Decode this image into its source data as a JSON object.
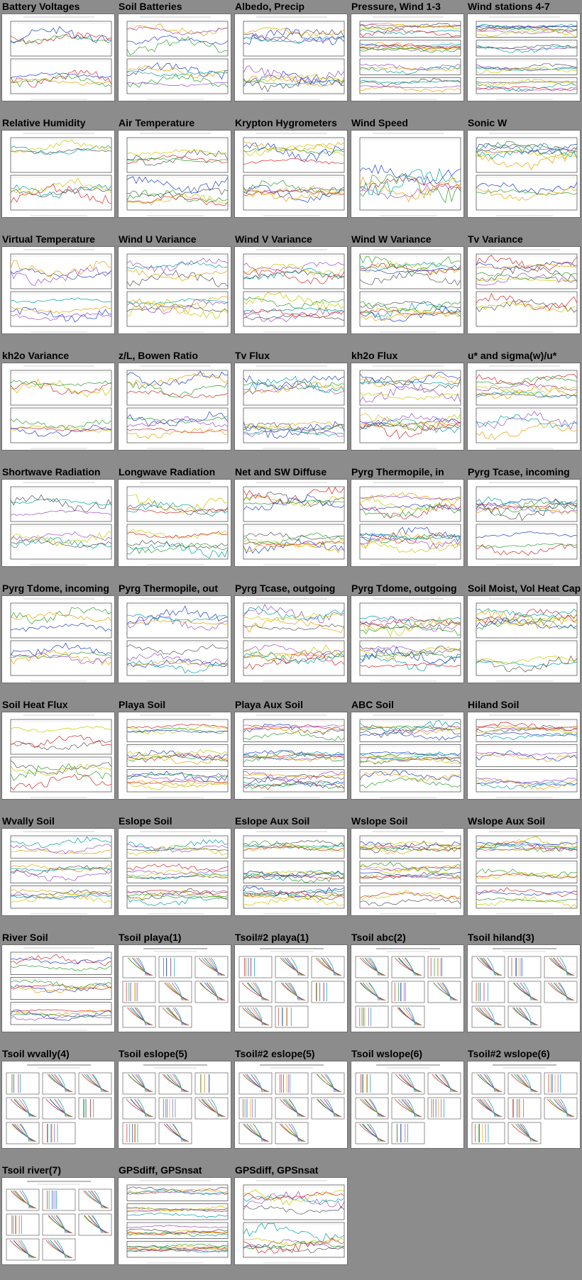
{
  "thumbnails": [
    {
      "title": "Battery Voltages",
      "kind": "ts",
      "panels": 2
    },
    {
      "title": "Soil Batteries",
      "kind": "ts",
      "panels": 2
    },
    {
      "title": "Albedo, Precip",
      "kind": "ts",
      "panels": 2
    },
    {
      "title": "Pressure, Wind 1-3",
      "kind": "ts",
      "panels": 4
    },
    {
      "title": "Wind stations 4-7",
      "kind": "ts",
      "panels": 4
    },
    {
      "title": "Relative Humidity",
      "kind": "ts",
      "panels": 2
    },
    {
      "title": "Air Temperature",
      "kind": "ts",
      "panels": 2
    },
    {
      "title": "Krypton Hygrometers",
      "kind": "ts",
      "panels": 2
    },
    {
      "title": "Wind Speed",
      "kind": "ts",
      "panels": 1
    },
    {
      "title": "Sonic W",
      "kind": "ts",
      "panels": 2
    },
    {
      "title": "Virtual Temperature",
      "kind": "ts",
      "panels": 2
    },
    {
      "title": "Wind U Variance",
      "kind": "ts",
      "panels": 2
    },
    {
      "title": "Wind V Variance",
      "kind": "ts",
      "panels": 2
    },
    {
      "title": "Wind W Variance",
      "kind": "ts",
      "panels": 2
    },
    {
      "title": "Tv Variance",
      "kind": "ts",
      "panels": 2
    },
    {
      "title": "kh2o Variance",
      "kind": "ts",
      "panels": 2
    },
    {
      "title": "z/L, Bowen Ratio",
      "kind": "ts",
      "panels": 2
    },
    {
      "title": "Tv Flux",
      "kind": "ts",
      "panels": 2
    },
    {
      "title": "kh2o Flux",
      "kind": "ts",
      "panels": 2
    },
    {
      "title": "u* and sigma(w)/u*",
      "kind": "ts",
      "panels": 2
    },
    {
      "title": "Shortwave Radiation",
      "kind": "ts",
      "panels": 2
    },
    {
      "title": "Longwave Radiation",
      "kind": "ts",
      "panels": 2
    },
    {
      "title": "Net and SW Diffuse",
      "kind": "ts",
      "panels": 2
    },
    {
      "title": "Pyrg Thermopile, in",
      "kind": "ts",
      "panels": 2
    },
    {
      "title": "Pyrg Tcase, incoming",
      "kind": "ts",
      "panels": 2
    },
    {
      "title": "Pyrg Tdome, incoming",
      "kind": "ts",
      "panels": 2
    },
    {
      "title": "Pyrg Thermopile, out",
      "kind": "ts",
      "panels": 2
    },
    {
      "title": "Pyrg Tcase, outgoing",
      "kind": "ts",
      "panels": 2
    },
    {
      "title": "Pyrg Tdome, outgoing",
      "kind": "ts",
      "panels": 2
    },
    {
      "title": "Soil Moist, Vol Heat Cap",
      "kind": "ts",
      "panels": 2
    },
    {
      "title": "Soil Heat Flux",
      "kind": "ts",
      "panels": 2
    },
    {
      "title": "Playa Soil",
      "kind": "ts",
      "panels": 3
    },
    {
      "title": "Playa Aux Soil",
      "kind": "ts",
      "panels": 3
    },
    {
      "title": "ABC Soil",
      "kind": "ts",
      "panels": 3
    },
    {
      "title": "Hiland Soil",
      "kind": "ts",
      "panels": 3
    },
    {
      "title": "Wvally Soil",
      "kind": "ts",
      "panels": 3
    },
    {
      "title": "Eslope Soil",
      "kind": "ts",
      "panels": 3
    },
    {
      "title": "Eslope Aux Soil",
      "kind": "ts",
      "panels": 3
    },
    {
      "title": "Wslope Soil",
      "kind": "ts",
      "panels": 3
    },
    {
      "title": "Wslope Aux Soil",
      "kind": "ts",
      "panels": 3
    },
    {
      "title": "River Soil",
      "kind": "ts",
      "panels": 3
    },
    {
      "title": "Tsoil playa(1)",
      "kind": "profile"
    },
    {
      "title": "Tsoil#2 playa(1)",
      "kind": "profile"
    },
    {
      "title": "Tsoil abc(2)",
      "kind": "profile"
    },
    {
      "title": "Tsoil hiland(3)",
      "kind": "profile"
    },
    {
      "title": "Tsoil wvally(4)",
      "kind": "profile"
    },
    {
      "title": "Tsoil eslope(5)",
      "kind": "profile"
    },
    {
      "title": "Tsoil#2 eslope(5)",
      "kind": "profile"
    },
    {
      "title": "Tsoil wslope(6)",
      "kind": "profile"
    },
    {
      "title": "Tsoil#2 wslope(6)",
      "kind": "profile"
    },
    {
      "title": "Tsoil river(7)",
      "kind": "profile"
    },
    {
      "title": "GPSdiff, GPSnsat",
      "kind": "ts",
      "panels": 4
    },
    {
      "title": "GPSdiff, GPSnsat",
      "kind": "ts",
      "panels": 2
    }
  ],
  "colors": {
    "background": "#8c8c8c",
    "series": [
      "#d62728",
      "#2ca02c",
      "#1f3fd0",
      "#e8a000",
      "#9a4fc4",
      "#00a0a0",
      "#555555",
      "#c8c800"
    ]
  }
}
